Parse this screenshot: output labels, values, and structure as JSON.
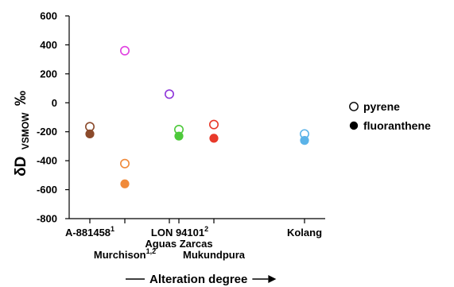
{
  "chart_data": {
    "type": "scatter",
    "ylabel": {
      "main": "δD",
      "sub": "VSMOW",
      "unit": "‰"
    },
    "xlabel": "Alteration degree",
    "ylim": [
      -800,
      600
    ],
    "yticks": [
      600,
      400,
      200,
      0,
      -200,
      -400,
      -600,
      -800
    ],
    "grid": false,
    "legend_position": "right",
    "categories": [
      {
        "name": "A-881458",
        "sup": "1",
        "row": 1
      },
      {
        "name": "Murchison",
        "sup": "1,2",
        "row": 2
      },
      {
        "name": "LON 94101",
        "sup": "2",
        "row": 1
      },
      {
        "name": "Aguas Zarcas",
        "sup": "",
        "row": 1
      },
      {
        "name": "Mukundpura",
        "sup": "",
        "row": 2
      },
      {
        "name": "Kolang",
        "sup": "",
        "row": 1
      }
    ],
    "series": [
      {
        "name": "pyrene",
        "marker": "open",
        "points": [
          {
            "sample": "A-881458",
            "y": -165,
            "color": "#8B4A2B"
          },
          {
            "sample": "Murchison",
            "y": 360,
            "color": "#E040E0"
          },
          {
            "sample": "Murchison",
            "y": -420,
            "color": "#F08A3A"
          },
          {
            "sample": "LON 94101",
            "y": 60,
            "color": "#8E35D9"
          },
          {
            "sample": "Aguas Zarcas",
            "y": -185,
            "color": "#4DC93A"
          },
          {
            "sample": "Mukundpura",
            "y": -150,
            "color": "#E8392A"
          },
          {
            "sample": "Kolang",
            "y": -215,
            "color": "#5BB3E8"
          }
        ]
      },
      {
        "name": "fluoranthene",
        "marker": "filled",
        "points": [
          {
            "sample": "A-881458",
            "y": -215,
            "color": "#8B4A2B"
          },
          {
            "sample": "Murchison",
            "y": -560,
            "color": "#F08A3A"
          },
          {
            "sample": "Aguas Zarcas",
            "y": -230,
            "color": "#4DC93A"
          },
          {
            "sample": "Mukundpura",
            "y": -245,
            "color": "#E8392A"
          },
          {
            "sample": "Kolang",
            "y": -260,
            "color": "#5BB3E8"
          }
        ]
      }
    ]
  }
}
